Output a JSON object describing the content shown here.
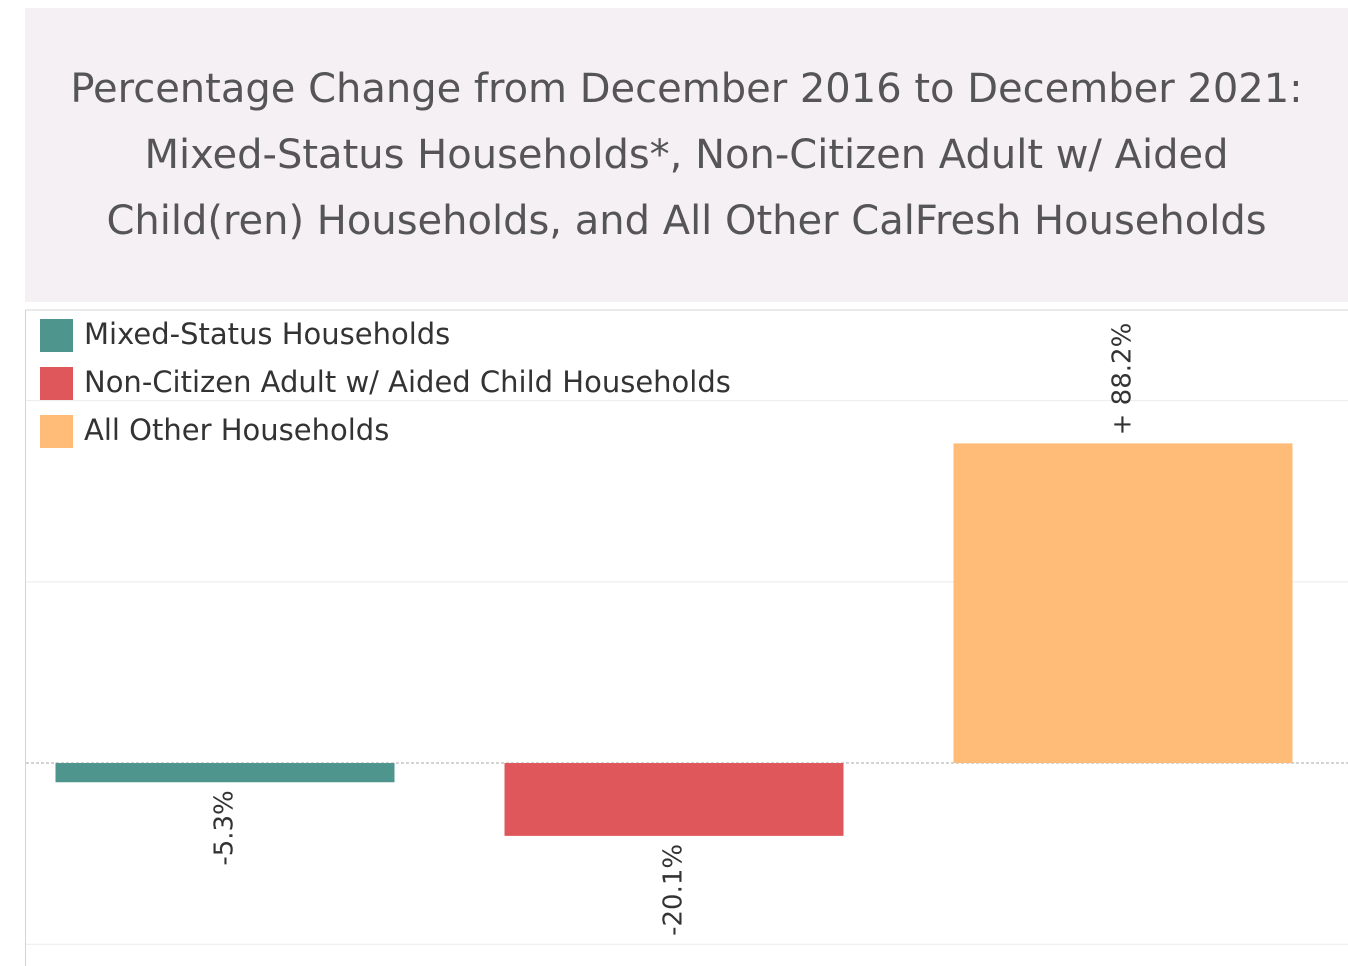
{
  "chart_data": {
    "type": "bar",
    "title": "Percentage Change from December 2016 to December 2021: Mixed-Status Households*, Non-Citizen Adult w/ Aided Child(ren) Households, and All Other CalFresh Households",
    "categories": [
      null
    ],
    "series": [
      {
        "name": "Mixed-Status Households",
        "color": "#4e958d",
        "values": [
          -5.3
        ],
        "value_labels": [
          "-5.3%"
        ]
      },
      {
        "name": "Non-Citizen Adult w/ Aided Child Households",
        "color": "#e0575b",
        "values": [
          -20.1
        ],
        "value_labels": [
          "-20.1%"
        ]
      },
      {
        "name": "All Other Households",
        "color": "#ffbc79",
        "values": [
          88.2
        ],
        "value_labels": [
          "+ 88.2%"
        ]
      }
    ],
    "ylim": [
      -56,
      125
    ],
    "yticks": [
      -50,
      0,
      50,
      100
    ],
    "grid": true,
    "legend": "top-left"
  }
}
